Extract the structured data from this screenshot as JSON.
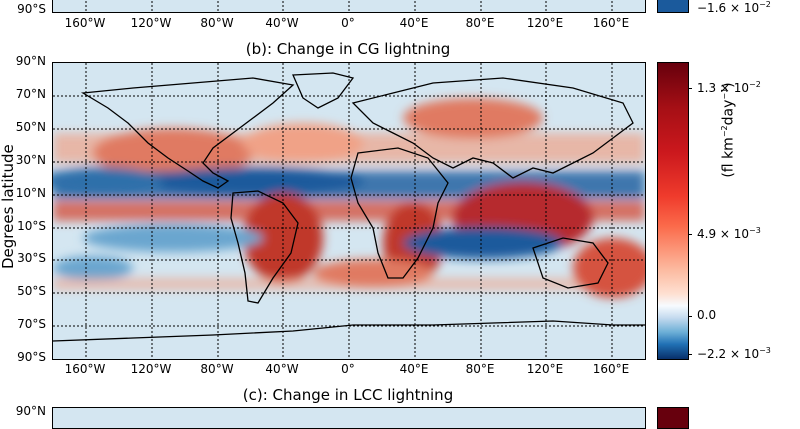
{
  "panels": {
    "a": {
      "bottom_lat_label": "90°S",
      "colorbar_min": "−1.6 × 10",
      "colorbar_min_exp": "−2"
    },
    "b": {
      "title": "(b): Change in CG lightning",
      "lat_ticks": [
        "90°N",
        "70°N",
        "50°N",
        "30°N",
        "10°N",
        "10°S",
        "30°S",
        "50°S",
        "70°S",
        "90°S"
      ],
      "colorbar_ticks": [
        {
          "mantissa": "1.3 × 10",
          "exp": "−2"
        },
        {
          "mantissa": "4.9 × 10",
          "exp": "−3"
        },
        {
          "mantissa": "0.0",
          "exp": ""
        },
        {
          "mantissa": "−2.2 × 10",
          "exp": "−3"
        }
      ],
      "colorbar_label": "(fl km",
      "colorbar_label_exp1": "−2",
      "colorbar_label_mid": "day",
      "colorbar_label_exp2": "−1",
      "colorbar_label_end": ")",
      "ylabel": "Degrees latitude"
    },
    "c": {
      "title": "(c): Change in LCC lightning",
      "top_lat_label": "90°N"
    }
  },
  "lon_ticks": [
    "160°W",
    "120°W",
    "80°W",
    "40°W",
    "0°",
    "40°E",
    "80°E",
    "120°E",
    "160°E"
  ],
  "colors": {
    "ocean_light": "#d4e6f1",
    "blue_strong": "#1b5a9c",
    "blue_mid": "#6aa6cf",
    "red_light": "#f0a287",
    "red_mid": "#d5533f",
    "red_dark": "#8e0f22"
  }
}
